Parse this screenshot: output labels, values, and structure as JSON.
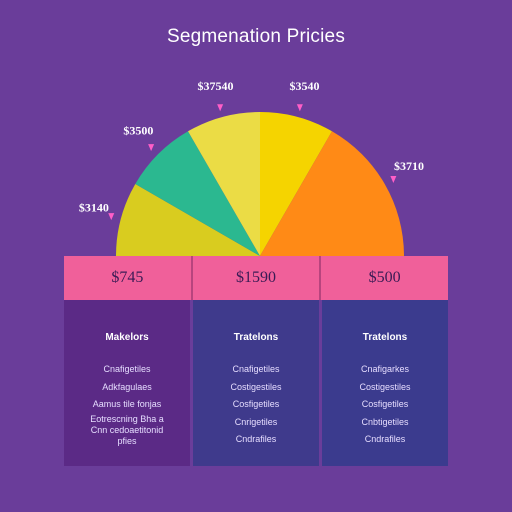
{
  "title": "Segmenation Pricies",
  "chart_data": {
    "type": "pie",
    "slices": [
      {
        "label": "$3140",
        "value": 1,
        "color": "#d9cc1f"
      },
      {
        "label": "$3500",
        "value": 1,
        "color": "#2bb890"
      },
      {
        "label": "$37540",
        "value": 1,
        "color": "#ebdc45"
      },
      {
        "label": "$3540",
        "value": 1,
        "color": "#f5d400"
      },
      {
        "label": "$3710",
        "value": 2,
        "color": "#ff8a16"
      }
    ],
    "price_bar": [
      "$745",
      "$1590",
      "$500"
    ],
    "panels": [
      {
        "title": "Makelors",
        "lines": [
          "Cnafigetiles",
          "Adkfagulaes",
          "Aamus tile fonjas",
          "Eotrescning Bha a",
          "Cnn cedoaetitonid",
          "pfies"
        ]
      },
      {
        "title": "Tratelons",
        "lines": [
          "Cnafigetiles",
          "Costigestiles",
          "Cosfigetiles",
          "Cnrigetiles",
          "Cndrafiles"
        ]
      },
      {
        "title": "Tratelons",
        "lines": [
          "Cnafigarkes",
          "Costigestiles",
          "Cosfigetiles",
          "Cnbtigetiles",
          "Cndrafiles"
        ]
      }
    ]
  }
}
